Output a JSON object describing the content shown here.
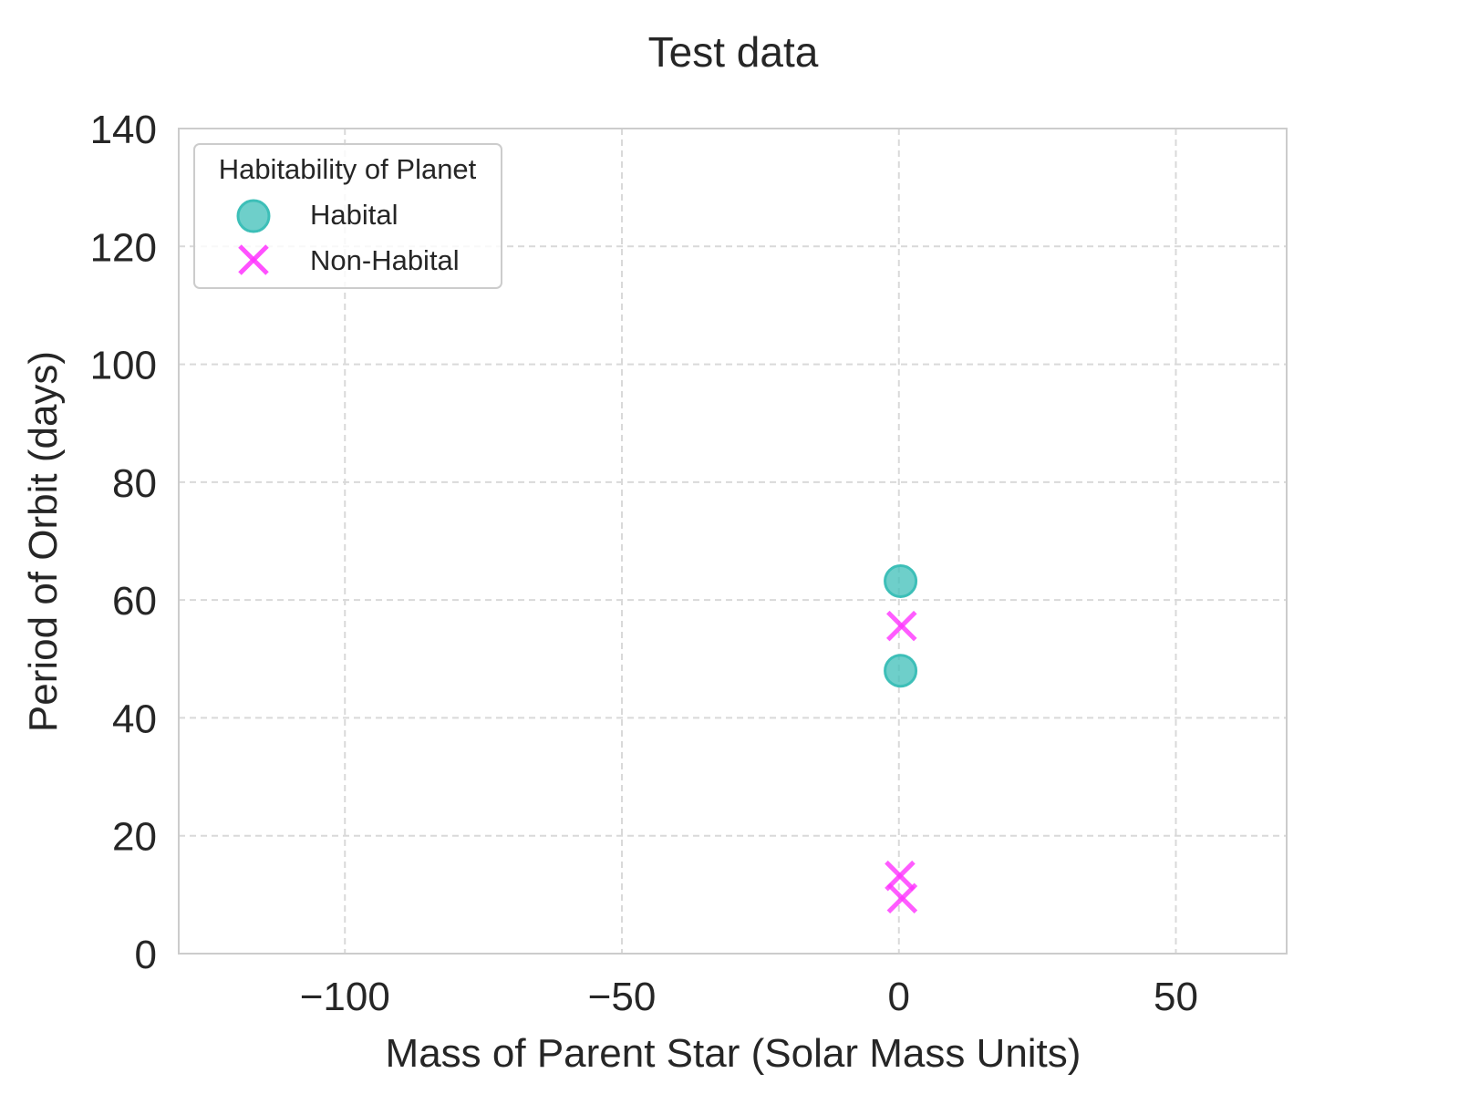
{
  "chart_data": {
    "type": "scatter",
    "title": "Test data",
    "xlabel": "Mass of Parent Star (Solar Mass Units)",
    "ylabel": "Period of Orbit (days)",
    "xlim": [
      -130,
      70
    ],
    "ylim": [
      0,
      140
    ],
    "xticks": [
      -100,
      -50,
      0,
      50
    ],
    "xtick_labels": [
      "−100",
      "−50",
      "0",
      "50"
    ],
    "yticks": [
      0,
      20,
      40,
      60,
      80,
      100,
      120,
      140
    ],
    "ytick_labels": [
      "0",
      "20",
      "40",
      "60",
      "80",
      "100",
      "120",
      "140"
    ],
    "grid": true,
    "legend": {
      "title": "Habitability of Planet",
      "placement": "top-left"
    },
    "series": [
      {
        "name": "Habital",
        "marker": "circle",
        "color": "#3dbfb8",
        "points": [
          {
            "x": 0.3,
            "y": 63.2
          },
          {
            "x": 0.3,
            "y": 48.0
          }
        ]
      },
      {
        "name": "Non-Habital",
        "marker": "x",
        "color": "#ff33ff",
        "points": [
          {
            "x": 0.5,
            "y": 55.6
          },
          {
            "x": 0.2,
            "y": 13.2
          },
          {
            "x": 0.6,
            "y": 9.4
          }
        ]
      }
    ]
  }
}
